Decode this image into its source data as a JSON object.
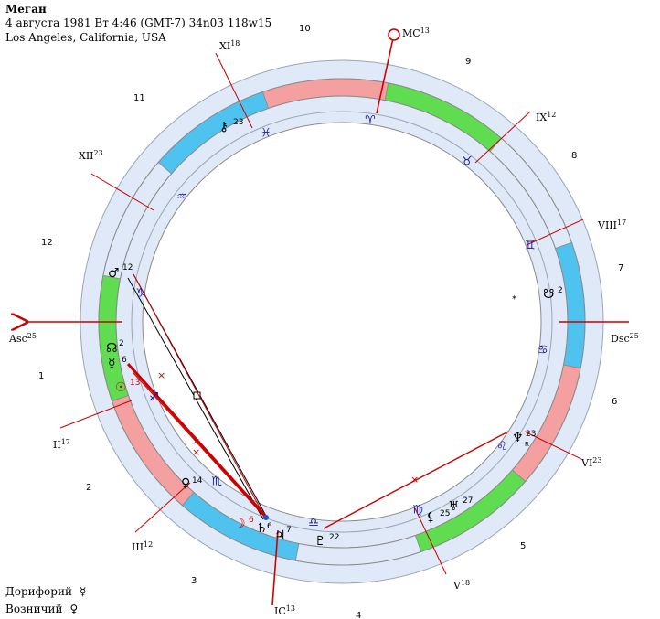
{
  "header": {
    "name": "Меган",
    "line2": "4 августа 1981  Вт   4:46 (GMT-7) 34n03  118w15",
    "line3": "Los Angeles, California, USA"
  },
  "footer": {
    "doryphory_label": "Дорифорий",
    "doryphory_glyph": "☿",
    "charioteer_label": "Возничий",
    "charioteer_glyph": "♀"
  },
  "angles": {
    "mc": {
      "label": "MC",
      "deg": "13"
    },
    "ic": {
      "label": "IC",
      "deg": "13"
    },
    "asc": {
      "label": "Asc",
      "deg": "25"
    },
    "dsc": {
      "label": "Dsc",
      "deg": "25"
    }
  },
  "cusps": [
    {
      "label": "II",
      "deg": "17"
    },
    {
      "label": "III",
      "deg": "12"
    },
    {
      "label": "V",
      "deg": "18"
    },
    {
      "label": "VI",
      "deg": "23"
    },
    {
      "label": "VIII",
      "deg": "17"
    },
    {
      "label": "IX",
      "deg": "12"
    },
    {
      "label": "XI",
      "deg": "18"
    },
    {
      "label": "XII",
      "deg": "23"
    }
  ],
  "house_numbers": [
    "1",
    "2",
    "3",
    "4",
    "5",
    "6",
    "7",
    "8",
    "9",
    "10",
    "11",
    "12"
  ],
  "signs": [
    {
      "glyph": "♈",
      "color": "#f4a0a0"
    },
    {
      "glyph": "♉",
      "color": "#5fdc4f"
    },
    {
      "glyph": "♊",
      "color": "#dfe9f7"
    },
    {
      "glyph": "♋",
      "color": "#4fc3ef"
    },
    {
      "glyph": "♌",
      "color": "#f4a0a0"
    },
    {
      "glyph": "♍",
      "color": "#5fdc4f"
    },
    {
      "glyph": "♎",
      "color": "#dfe9f7"
    },
    {
      "glyph": "♏",
      "color": "#4fc3ef"
    },
    {
      "glyph": "♐",
      "color": "#f4a0a0"
    },
    {
      "glyph": "♑",
      "color": "#5fdc4f"
    },
    {
      "glyph": "♒",
      "color": "#dfe9f7"
    },
    {
      "glyph": "♓",
      "color": "#4fc3ef"
    }
  ],
  "planets": [
    {
      "glyph": "♂",
      "deg": "12"
    },
    {
      "glyph": "☊",
      "deg": "2"
    },
    {
      "glyph": "☿",
      "deg": "6"
    },
    {
      "glyph": "☉",
      "deg": "13"
    },
    {
      "glyph": "♀",
      "deg": "14"
    },
    {
      "glyph": "☽",
      "deg": "6"
    },
    {
      "glyph": "♄",
      "deg": "6"
    },
    {
      "glyph": "♃",
      "deg": "7"
    },
    {
      "glyph": "♇",
      "deg": "22"
    },
    {
      "glyph": "⚸",
      "deg": "25"
    },
    {
      "glyph": "♅",
      "deg": "27"
    },
    {
      "glyph": "♆",
      "deg": "23"
    },
    {
      "glyph": "☋",
      "deg": "2"
    },
    {
      "glyph": "⚷",
      "deg": "23"
    }
  ],
  "retrograde_mark": "R",
  "colors": {
    "ring": "#dfe9f7",
    "line": "#a0a0a0",
    "cusp": "#cc0000",
    "axis": "#cc0000"
  }
}
